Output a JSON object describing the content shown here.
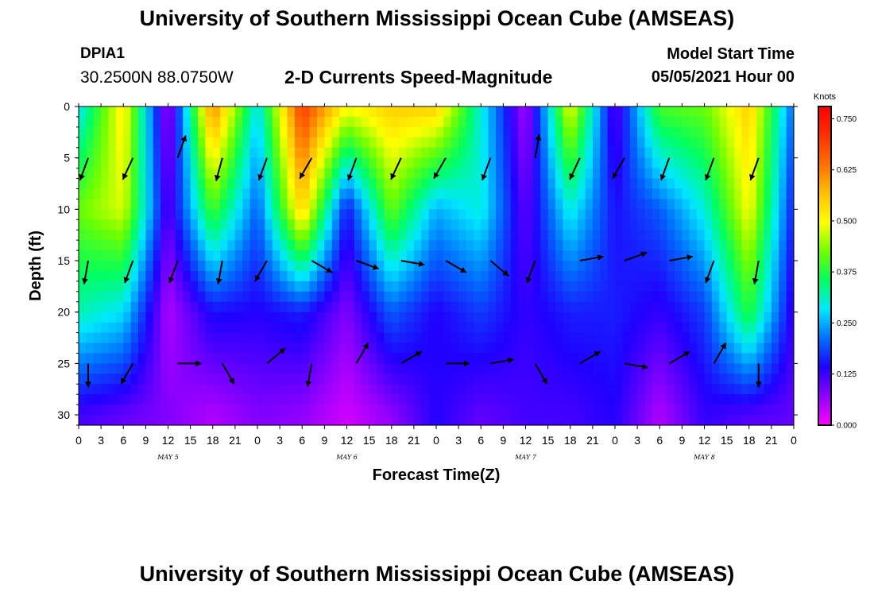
{
  "header": {
    "title": "University of Southern Mississippi Ocean Cube (AMSEAS)",
    "station_id": "DPIA1",
    "station_coords": "30.2500N  88.0750W",
    "chart_title": "2-D Currents Speed-Magnitude",
    "model_start_label": "Model Start Time",
    "model_start_value": "05/05/2021 Hour 00"
  },
  "footer": {
    "title": "University of Southern Mississippi Ocean Cube (AMSEAS)"
  },
  "chart_data": {
    "type": "heatmap",
    "title": "2-D Currents Speed-Magnitude",
    "xlabel": "Forecast Time(Z)",
    "ylabel": "Depth (ft)",
    "x_ticks": [
      "0",
      "3",
      "6",
      "9",
      "12",
      "15",
      "18",
      "21",
      "0",
      "3",
      "6",
      "9",
      "12",
      "15",
      "18",
      "21",
      "0",
      "3",
      "6",
      "9",
      "12",
      "15",
      "18",
      "21",
      "0",
      "3",
      "6",
      "9",
      "12",
      "15",
      "18",
      "21",
      "0"
    ],
    "day_labels": [
      "MAY  5",
      "MAY  6",
      "MAY  7",
      "MAY  8"
    ],
    "xlim_hours": [
      0,
      96
    ],
    "y_ticks": [
      0,
      5,
      10,
      15,
      20,
      25,
      30
    ],
    "ylim": [
      0,
      31
    ],
    "y_inverted": true,
    "colorbar": {
      "unit": "Knots",
      "ticks": [
        "0.750",
        "0.625",
        "0.500",
        "0.375",
        "0.250",
        "0.125",
        "0.000"
      ],
      "range": [
        0,
        0.78
      ],
      "colors": [
        "#ff00ff",
        "#9000ff",
        "#2000ff",
        "#0070ff",
        "#00e8ff",
        "#00ff60",
        "#70ff00",
        "#ffff00",
        "#ffc000",
        "#ff7000",
        "#ff3000",
        "#ff0000"
      ]
    },
    "times_h": [
      0,
      6,
      12,
      18,
      24,
      30,
      36,
      42,
      48,
      54,
      60,
      66,
      72,
      78,
      84,
      90,
      96
    ],
    "depths_ft": [
      0,
      10,
      20,
      30
    ],
    "speed_knots": [
      [
        0.28,
        0.52,
        0.05,
        0.62,
        0.28,
        0.7,
        0.5,
        0.55,
        0.55,
        0.3,
        0.05,
        0.5,
        0.1,
        0.4,
        0.42,
        0.55,
        0.2
      ],
      [
        0.42,
        0.48,
        0.1,
        0.4,
        0.2,
        0.55,
        0.15,
        0.42,
        0.25,
        0.3,
        0.1,
        0.3,
        0.15,
        0.2,
        0.3,
        0.5,
        0.15
      ],
      [
        0.32,
        0.28,
        0.05,
        0.15,
        0.14,
        0.16,
        0.08,
        0.2,
        0.14,
        0.18,
        0.13,
        0.16,
        0.16,
        0.13,
        0.18,
        0.38,
        0.12
      ],
      [
        0.12,
        0.1,
        0.08,
        0.05,
        0.08,
        0.07,
        0.03,
        0.07,
        0.14,
        0.1,
        0.12,
        0.12,
        0.14,
        0.05,
        0.13,
        0.11,
        0.1
      ]
    ],
    "vector_times_h": [
      0,
      6,
      12,
      18,
      24,
      30,
      36,
      42,
      48,
      54,
      60,
      66,
      72,
      78,
      84,
      90
    ],
    "vector_depths_ft": [
      5,
      15,
      25
    ],
    "direction_deg": [
      [
        200,
        205,
        20,
        195,
        200,
        210,
        200,
        205,
        210,
        200,
        10,
        205,
        210,
        200,
        200,
        200
      ],
      [
        190,
        200,
        200,
        190,
        210,
        120,
        110,
        100,
        120,
        130,
        200,
        80,
        70,
        80,
        200,
        190
      ],
      [
        180,
        210,
        90,
        150,
        50,
        190,
        30,
        60,
        90,
        80,
        150,
        60,
        100,
        60,
        30,
        180
      ]
    ]
  }
}
